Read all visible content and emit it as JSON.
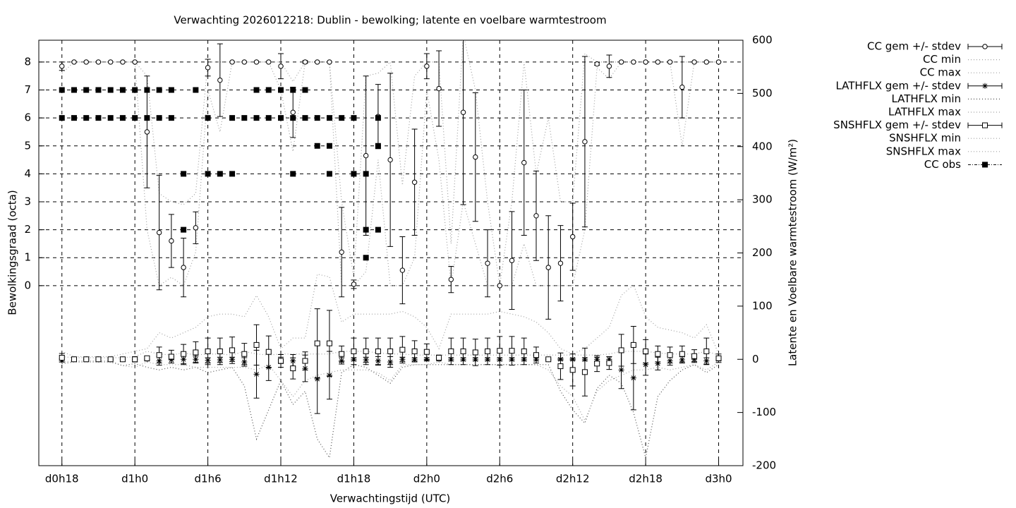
{
  "chart_data": {
    "type": "errorbar",
    "title": "Verwachting 2026012218: Dublin - bewolking; latente en voelbare warmtestroom",
    "xlabel": "Verwachtingstijd (UTC)",
    "ylabel": "Bewolkingsgraad (octa)",
    "y2label": "Latente en Voelbare warmtestroom (W/m²)",
    "xlim": [
      16.1,
      74
    ],
    "xticks": [
      {
        "value": 18,
        "label": "d0h18"
      },
      {
        "value": 24,
        "label": "d1h0"
      },
      {
        "value": 30,
        "label": "d1h6"
      },
      {
        "value": 36,
        "label": "d1h12"
      },
      {
        "value": 42,
        "label": "d1h18"
      },
      {
        "value": 48,
        "label": "d2h0"
      },
      {
        "value": 54,
        "label": "d2h6"
      },
      {
        "value": 60,
        "label": "d2h12"
      },
      {
        "value": 66,
        "label": "d2h18"
      },
      {
        "value": 72,
        "label": "d3h0"
      }
    ],
    "ylim": [
      -6.44,
      8.78
    ],
    "yticks": [
      0,
      1,
      2,
      3,
      4,
      5,
      6,
      7,
      8
    ],
    "y2lim": [
      -200,
      600
    ],
    "y2ticks": [
      -200,
      -100,
      0,
      100,
      200,
      300,
      400,
      500,
      600
    ],
    "grid": true,
    "legend": "right",
    "x": [
      18,
      19,
      20,
      21,
      22,
      23,
      24,
      25,
      26,
      27,
      28,
      29,
      30,
      31,
      32,
      33,
      34,
      35,
      36,
      37,
      38,
      39,
      40,
      41,
      42,
      43,
      44,
      45,
      46,
      47,
      48,
      49,
      50,
      51,
      52,
      53,
      54,
      55,
      56,
      57,
      58,
      59,
      60,
      61,
      62,
      63,
      64,
      65,
      66,
      67,
      68,
      69,
      70,
      71,
      72
    ],
    "series": [
      {
        "name": "CC gem +/- stdev",
        "style": "circle",
        "color": "#000000",
        "axis": "y",
        "values": [
          7.85,
          8,
          8,
          8,
          8,
          8,
          8,
          5.5,
          1.9,
          1.6,
          0.65,
          2.07,
          7.8,
          7.35,
          8,
          8,
          8,
          8,
          7.85,
          6.2,
          8,
          8,
          8,
          1.2,
          0.05,
          4.65,
          6.05,
          4.5,
          0.55,
          3.7,
          7.85,
          7.05,
          0.22,
          6.2,
          4.6,
          0.8,
          0,
          0.9,
          4.4,
          2.5,
          0.65,
          0.8,
          1.75,
          5.15,
          7.93,
          7.85,
          8,
          8,
          8,
          8,
          8,
          7.1,
          8,
          8,
          8
        ],
        "errors": [
          0.15,
          0,
          0,
          0,
          0,
          0,
          0,
          2,
          2.05,
          0.95,
          1.05,
          0.57,
          0.3,
          1.3,
          0,
          0,
          0,
          0,
          0.45,
          0.9,
          0.05,
          0,
          0,
          1.6,
          0.15,
          2.85,
          1.15,
          3.1,
          1.2,
          1.9,
          0.45,
          1.35,
          0.47,
          3.3,
          2.3,
          1.2,
          0,
          1.75,
          2.6,
          1.6,
          1.85,
          1.35,
          1.2,
          3.05,
          0.05,
          0.4,
          0,
          0,
          0,
          0,
          0,
          1.1,
          0,
          0,
          0
        ]
      },
      {
        "name": "CC min",
        "style": "dotted",
        "color": "#a0a0a0",
        "axis": "y",
        "values": [
          7.6,
          8,
          8,
          8,
          8,
          8,
          8,
          2,
          0,
          0.3,
          0,
          1.2,
          7,
          5.5,
          8,
          8,
          8,
          8,
          7,
          4.8,
          8,
          8,
          8,
          0,
          0,
          0.5,
          4.5,
          0,
          0,
          1,
          7,
          4.5,
          0,
          3,
          1.5,
          0,
          0,
          0,
          1.5,
          0,
          0,
          0,
          0,
          2,
          7.8,
          7.4,
          8,
          8,
          8,
          8,
          8,
          5,
          8,
          8,
          8
        ]
      },
      {
        "name": "CC max",
        "style": "dotted",
        "color": "#a0a0a0",
        "axis": "y",
        "values": [
          8,
          8,
          8,
          8,
          8,
          8,
          8,
          7.5,
          3.3,
          3,
          2.9,
          3.3,
          8,
          8,
          8,
          8,
          8,
          8,
          8,
          7.3,
          8,
          8,
          8,
          3,
          0.3,
          7.5,
          7.6,
          8,
          3.6,
          7.5,
          8,
          8,
          1.5,
          9,
          7,
          3,
          0,
          3,
          8,
          4,
          6,
          3,
          3,
          8.3,
          8,
          8,
          8,
          8,
          8,
          8,
          8,
          8,
          8,
          8,
          8
        ]
      },
      {
        "name": "LATHFLX gem +/- stdev",
        "style": "star",
        "color": "#000000",
        "axis": "y2",
        "values": [
          -2,
          0,
          0,
          0,
          0,
          0,
          0,
          0,
          -3,
          -1,
          0,
          0,
          -2,
          -1,
          0,
          -5,
          -28,
          -15,
          -2,
          -3,
          -17,
          -37,
          -30,
          -3,
          0,
          -1,
          -3,
          -5,
          0,
          0,
          0,
          0,
          0,
          0,
          0,
          0,
          0,
          0,
          0,
          0,
          0,
          0,
          0,
          0,
          0,
          0,
          -20,
          -35,
          -10,
          -8,
          -3,
          -1,
          0,
          -3,
          0
        ],
        "errors": [
          3,
          0,
          0,
          0,
          0,
          0,
          0,
          2,
          8,
          6,
          10,
          6,
          5,
          5,
          4,
          8,
          45,
          25,
          6,
          12,
          25,
          65,
          45,
          6,
          3,
          5,
          8,
          10,
          4,
          3,
          3,
          2,
          3,
          3,
          3,
          3,
          3,
          3,
          3,
          3,
          2,
          2,
          2,
          3,
          4,
          5,
          35,
          60,
          20,
          12,
          8,
          6,
          4,
          6,
          3
        ]
      },
      {
        "name": "LATHFLX min",
        "style": "dotted",
        "color": "#505050",
        "axis": "y2",
        "values": [
          -8,
          -5,
          -5,
          -5,
          -5,
          -12,
          -8,
          -15,
          -20,
          -15,
          -20,
          -15,
          -25,
          -20,
          -15,
          -50,
          -150,
          -95,
          -40,
          -85,
          -60,
          -150,
          -185,
          -25,
          -10,
          -15,
          -30,
          -45,
          -15,
          -10,
          -10,
          -10,
          -10,
          -10,
          -10,
          -10,
          -10,
          -10,
          -10,
          -10,
          -10,
          -60,
          -95,
          -120,
          -55,
          -30,
          -45,
          -100,
          -185,
          -70,
          -40,
          -20,
          -10,
          -25,
          -10
        ]
      },
      {
        "name": "LATHFLX max",
        "style": "dotted",
        "color": "#a0a0a0",
        "axis": "y2",
        "values": [
          5,
          3,
          3,
          3,
          3,
          3,
          5,
          15,
          10,
          8,
          12,
          8,
          10,
          10,
          8,
          15,
          10,
          8,
          10,
          10,
          10,
          10,
          10,
          15,
          15,
          15,
          12,
          10,
          10,
          8,
          8,
          8,
          8,
          8,
          8,
          8,
          8,
          8,
          8,
          8,
          8,
          8,
          8,
          8,
          8,
          10,
          15,
          15,
          15,
          12,
          10,
          10,
          10,
          15,
          8
        ]
      },
      {
        "name": "SNSHFLX gem +/- stdev",
        "style": "square",
        "color": "#000000",
        "axis": "y2",
        "values": [
          3,
          0,
          0,
          0,
          0,
          0,
          0,
          2,
          8,
          5,
          10,
          13,
          15,
          15,
          17,
          10,
          27,
          14,
          -3,
          -17,
          -3,
          30,
          30,
          10,
          15,
          15,
          15,
          15,
          18,
          15,
          14,
          3,
          15,
          15,
          13,
          15,
          16,
          16,
          15,
          8,
          0,
          -13,
          -20,
          -24,
          -8,
          -7,
          17,
          27,
          15,
          10,
          8,
          10,
          6,
          15,
          2
        ],
        "errors": [
          8,
          2,
          2,
          2,
          2,
          4,
          5,
          3,
          15,
          12,
          18,
          20,
          25,
          25,
          25,
          20,
          38,
          30,
          12,
          20,
          17,
          65,
          62,
          15,
          25,
          25,
          25,
          25,
          25,
          20,
          15,
          5,
          25,
          25,
          25,
          25,
          27,
          27,
          25,
          15,
          0,
          25,
          30,
          45,
          15,
          12,
          30,
          35,
          22,
          15,
          15,
          15,
          12,
          25,
          8
        ]
      },
      {
        "name": "SNSHFLX min",
        "style": "dotted",
        "color": "#a0a0a0",
        "axis": "y2",
        "values": [
          -5,
          -3,
          -3,
          -3,
          -3,
          -12,
          -15,
          -5,
          -10,
          -10,
          -10,
          -15,
          -15,
          -15,
          -15,
          -15,
          -20,
          -10,
          -40,
          -70,
          -40,
          -30,
          -25,
          -20,
          -20,
          -20,
          -25,
          -40,
          -10,
          -10,
          -10,
          -5,
          -10,
          -10,
          -10,
          -10,
          -10,
          -10,
          -10,
          -10,
          -20,
          -50,
          -70,
          -115,
          -60,
          -40,
          -30,
          -20,
          -20,
          -15,
          -20,
          -15,
          -10,
          -20,
          -5
        ]
      },
      {
        "name": "SNSHFLX max",
        "style": "dotted",
        "color": "#a0a0a0",
        "axis": "y2",
        "values": [
          15,
          5,
          5,
          5,
          5,
          10,
          15,
          20,
          50,
          40,
          50,
          60,
          80,
          85,
          85,
          80,
          120,
          80,
          20,
          40,
          40,
          160,
          155,
          70,
          85,
          85,
          85,
          85,
          90,
          80,
          60,
          20,
          85,
          85,
          85,
          85,
          90,
          85,
          80,
          70,
          50,
          20,
          10,
          20,
          40,
          60,
          120,
          140,
          80,
          60,
          55,
          50,
          40,
          65,
          10
        ]
      },
      {
        "name": "CC obs",
        "style": "filled-square",
        "color": "#000000",
        "axis": "y",
        "x": [
          18,
          19,
          20,
          21,
          22,
          23,
          24,
          25,
          26,
          27,
          29,
          34,
          35,
          36,
          37,
          38,
          18,
          19,
          20,
          21,
          22,
          23,
          24,
          25,
          26,
          27,
          30,
          32,
          33,
          34,
          35,
          36,
          37,
          38,
          39,
          40,
          41,
          42,
          44,
          28,
          30,
          31,
          32,
          37,
          40,
          42,
          43,
          39,
          40,
          44,
          28,
          43,
          44,
          43
        ],
        "values": [
          7,
          7,
          7,
          7,
          7,
          7,
          7,
          7,
          7,
          7,
          7,
          7,
          7,
          7,
          7,
          7,
          6,
          6,
          6,
          6,
          6,
          6,
          6,
          6,
          6,
          6,
          6,
          6,
          6,
          6,
          6,
          6,
          6,
          6,
          6,
          6,
          6,
          6,
          6,
          4,
          4,
          4,
          4,
          4,
          4,
          4,
          4,
          5,
          5,
          5,
          2,
          2,
          2,
          1
        ]
      }
    ]
  }
}
